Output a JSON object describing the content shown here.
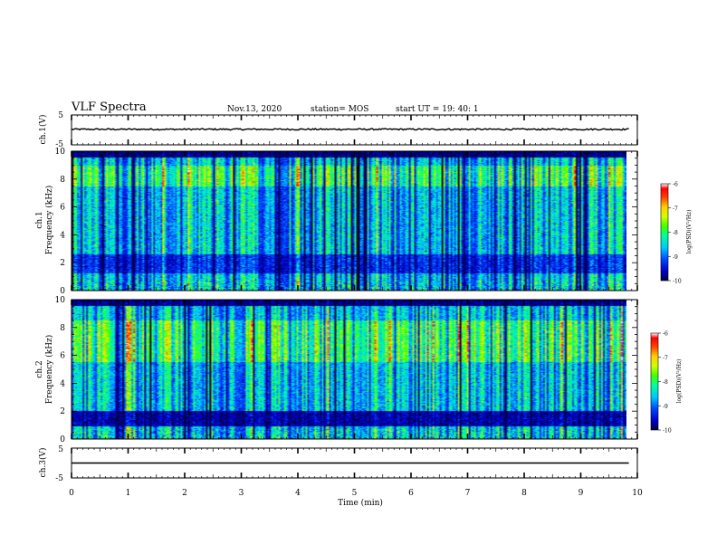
{
  "header": {
    "title": "VLF Spectra",
    "date": "Nov.13, 2020",
    "station": "station= MOS",
    "start_ut": "start  UT =   19: 40: 1"
  },
  "colors": {
    "colormap": [
      "#00003c",
      "#0000cc",
      "#0048ff",
      "#00c8ff",
      "#00ffa0",
      "#40ff00",
      "#d0ff00",
      "#ffd000",
      "#ff4000",
      "#ff0000",
      "#ffffff"
    ],
    "trace": "#000000"
  },
  "chart_data": [
    {
      "type": "line",
      "name": "ch1-waveform",
      "ylabel": "ch.1(V)",
      "ylim": [
        -5,
        5
      ],
      "yticks": [
        "5",
        "-5"
      ],
      "xlim": [
        0,
        10
      ],
      "level": 0.2
    },
    {
      "type": "heatmap",
      "name": "ch1-spectrogram",
      "ylabel_top": "ch.1",
      "ylabel": "Frequency (kHz)",
      "ylim": [
        0,
        10
      ],
      "yticks": [
        "0",
        "2",
        "4",
        "6",
        "8",
        "10"
      ],
      "xlim": [
        0,
        9.85
      ],
      "colorbar": {
        "label": "log(PSD)(V²/Hz)",
        "range": [
          -10,
          -6
        ],
        "ticks": [
          "-6",
          "-7",
          "-8",
          "-9",
          "-10"
        ]
      },
      "intense_band_khz": [
        7.5,
        9.0
      ]
    },
    {
      "type": "heatmap",
      "name": "ch2-spectrogram",
      "ylabel_top": "ch.2",
      "ylabel": "Frequency (kHz)",
      "ylim": [
        0,
        10
      ],
      "yticks": [
        "0",
        "2",
        "4",
        "6",
        "8",
        "10"
      ],
      "xlim": [
        0,
        9.85
      ],
      "colorbar": {
        "label": "log(PSD)(V²/Hz)",
        "range": [
          -10,
          -6
        ],
        "ticks": [
          "-6",
          "-7",
          "-8",
          "-9",
          "-10"
        ]
      },
      "intense_band_khz": [
        5.5,
        8.5
      ]
    },
    {
      "type": "line",
      "name": "ch3-waveform",
      "ylabel": "ch.3(V)",
      "ylim": [
        -5,
        5
      ],
      "yticks": [
        "5",
        "-5"
      ],
      "xlim": [
        0,
        10
      ],
      "level": 0.0
    }
  ],
  "x_axis": {
    "label": "Time  (min)",
    "ticks": [
      "0",
      "1",
      "2",
      "3",
      "4",
      "5",
      "6",
      "7",
      "8",
      "9",
      "10"
    ],
    "xlim": [
      0,
      10
    ]
  }
}
